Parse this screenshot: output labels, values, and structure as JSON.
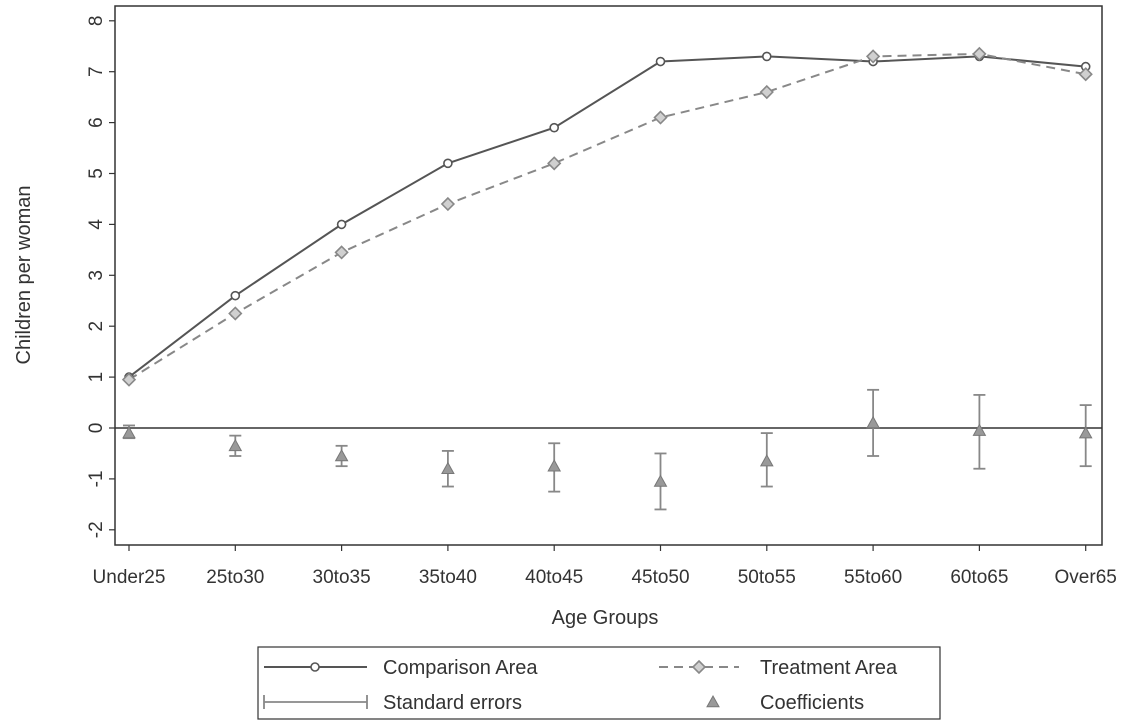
{
  "chart_data": {
    "type": "line",
    "xlabel": "Age Groups",
    "ylabel": "Children per woman",
    "categories": [
      "Under25",
      "25to30",
      "30to35",
      "35to40",
      "40to45",
      "45to50",
      "50to55",
      "55to60",
      "60to65",
      "Over65"
    ],
    "ylim": [
      -2,
      8
    ],
    "yticks": [
      -2,
      -1,
      0,
      1,
      2,
      3,
      4,
      5,
      6,
      7,
      8
    ],
    "grid": false,
    "legend_position": "bottom",
    "series": [
      {
        "name": "Comparison Area",
        "style": "solid-circle",
        "values": [
          1.0,
          2.6,
          4.0,
          5.2,
          5.9,
          7.2,
          7.3,
          7.2,
          7.3,
          7.1
        ]
      },
      {
        "name": "Treatment Area",
        "style": "dashed-diamond",
        "values": [
          0.95,
          2.25,
          3.45,
          4.4,
          5.2,
          6.1,
          6.6,
          7.3,
          7.35,
          6.95
        ]
      },
      {
        "name": "Coefficients",
        "style": "triangle",
        "values": [
          -0.1,
          -0.35,
          -0.55,
          -0.8,
          -0.75,
          -1.05,
          -0.65,
          0.1,
          -0.05,
          -0.1
        ]
      },
      {
        "name": "Standard errors",
        "style": "error-bar",
        "lower": [
          -0.2,
          -0.55,
          -0.75,
          -1.15,
          -1.25,
          -1.6,
          -1.15,
          -0.55,
          -0.8,
          -0.75
        ],
        "upper": [
          0.05,
          -0.15,
          -0.35,
          -0.45,
          -0.3,
          -0.5,
          -0.1,
          0.75,
          0.65,
          0.45
        ]
      }
    ],
    "legend": [
      {
        "label": "Comparison Area",
        "key": "comparison"
      },
      {
        "label": "Treatment Area",
        "key": "treatment"
      },
      {
        "label": "Standard errors",
        "key": "stderr"
      },
      {
        "label": "Coefficients",
        "key": "coef"
      }
    ],
    "colors": {
      "comparison": "#555555",
      "treatment": "#888888",
      "coef": "#999999",
      "stderr": "#888888",
      "axis": "#333333",
      "zero_line": "#333333"
    }
  }
}
